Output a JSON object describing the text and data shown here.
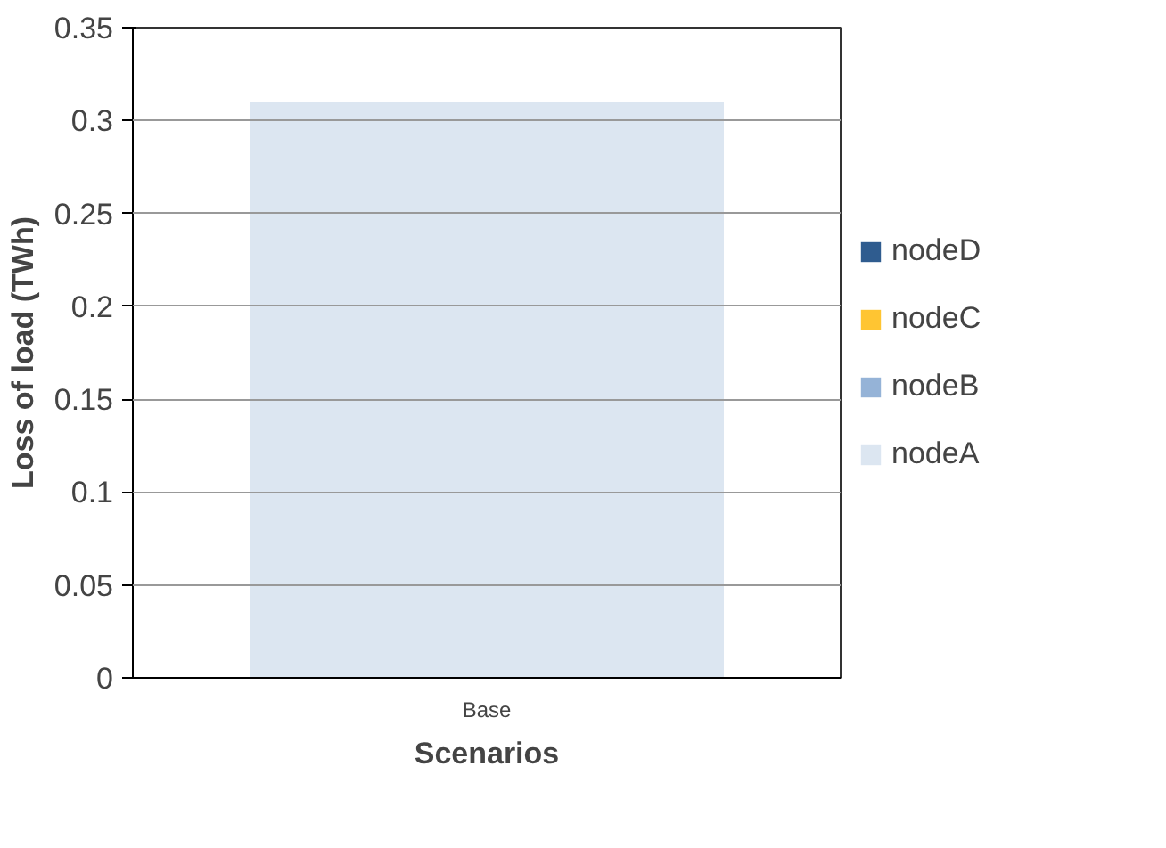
{
  "chart_data": {
    "type": "bar",
    "stacked": true,
    "xlabel": "Scenarios",
    "ylabel": "Loss of load (TWh)",
    "categories": [
      "Base"
    ],
    "series": [
      {
        "name": "nodeA",
        "color": "#dce6f1",
        "values": [
          0.31
        ]
      },
      {
        "name": "nodeB",
        "color": "#95b3d7",
        "values": [
          0
        ]
      },
      {
        "name": "nodeC",
        "color": "#ffc532",
        "values": [
          0
        ]
      },
      {
        "name": "nodeD",
        "color": "#2f5c8f",
        "values": [
          0
        ]
      }
    ],
    "ylim": [
      0,
      0.35
    ],
    "yticks": [
      0,
      0.05,
      0.1,
      0.15,
      0.2,
      0.25,
      0.3,
      0.35
    ],
    "grid": "y",
    "legend": "right"
  }
}
